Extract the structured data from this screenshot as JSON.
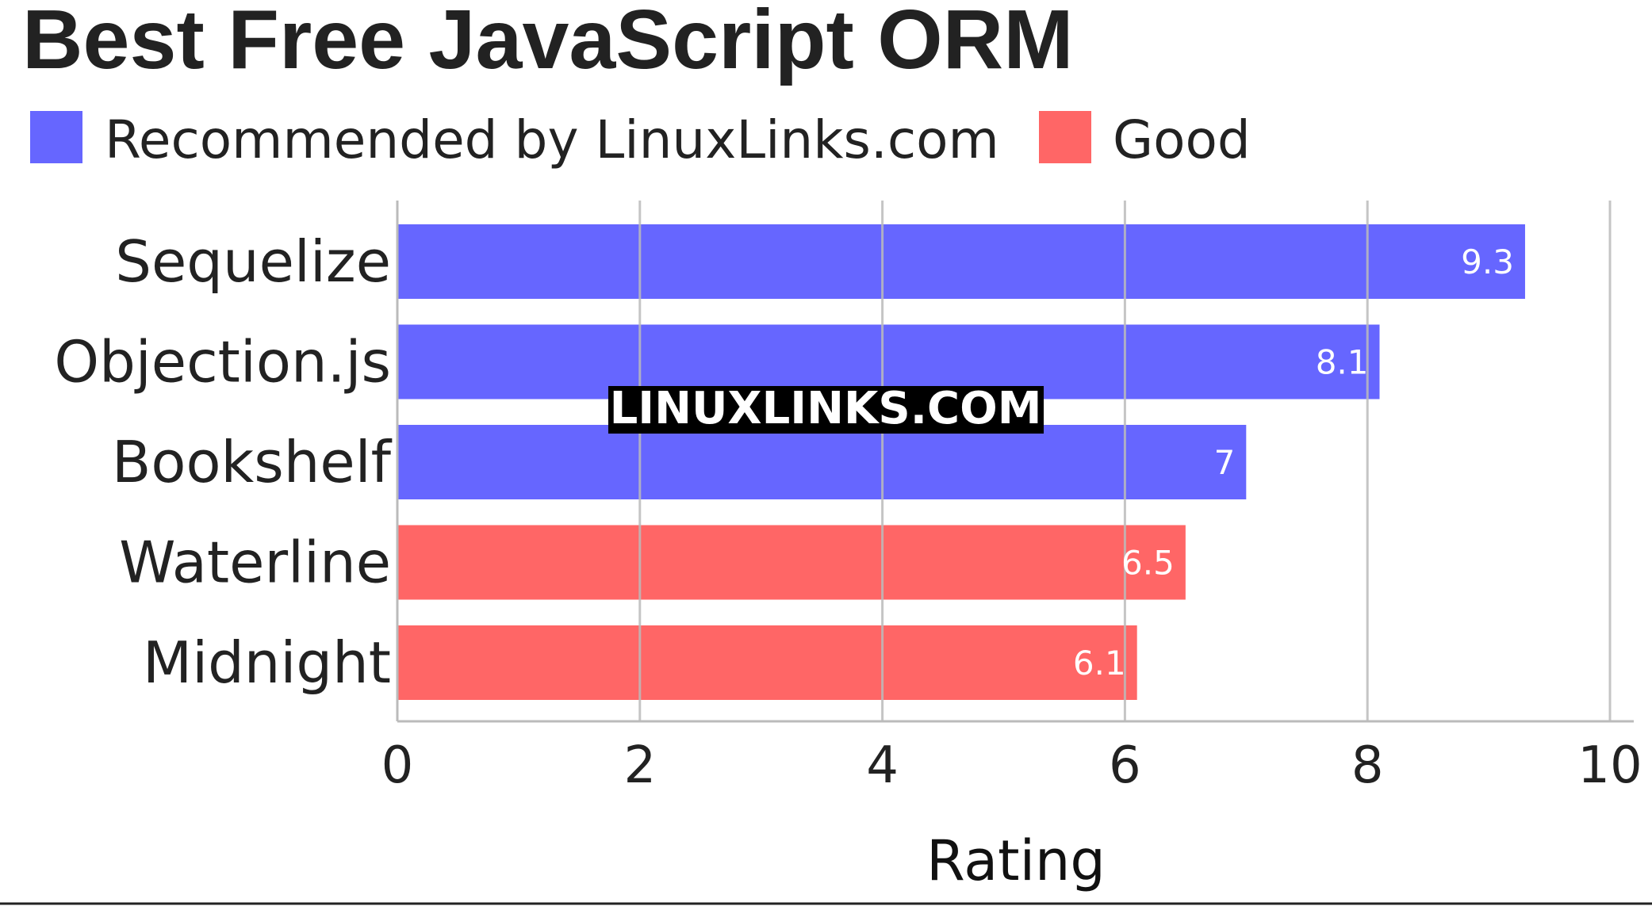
{
  "chart_data": {
    "type": "bar",
    "orientation": "horizontal",
    "title": "Best Free JavaScript ORM",
    "xlabel": "Rating",
    "ylabel": "",
    "xlim": [
      0,
      10
    ],
    "ticks": [
      "0",
      "2",
      "4",
      "6",
      "8",
      "10"
    ],
    "tick_values": [
      0,
      2,
      4,
      6,
      8,
      10
    ],
    "grid": true,
    "legend_position": "top-left",
    "categories": [
      "Sequelize",
      "Objection.js",
      "Bookshelf",
      "Waterline",
      "Midnight"
    ],
    "values": [
      9.3,
      8.1,
      7,
      6.5,
      6.1
    ],
    "value_labels": [
      "9.3",
      "8.1",
      "7",
      "6.5",
      "6.1"
    ],
    "groups": [
      "Recommended by LinuxLinks.com",
      "Recommended by LinuxLinks.com",
      "Recommended by LinuxLinks.com",
      "Good",
      "Good"
    ],
    "legend": [
      {
        "name": "Recommended by LinuxLinks.com",
        "color": "#6666ff"
      },
      {
        "name": "Good",
        "color": "#ff6666"
      }
    ]
  },
  "watermark": "LINUXLINKS.COM",
  "colors": {
    "recommended": "#6666ff",
    "good": "#ff6666",
    "grid": "#bbbbbb",
    "text": "#222222"
  }
}
